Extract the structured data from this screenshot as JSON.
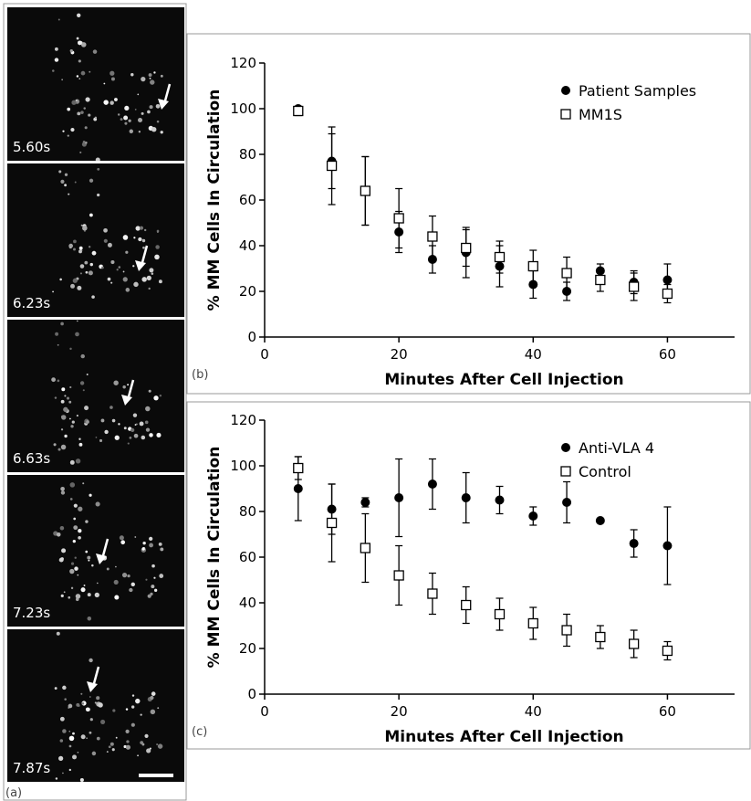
{
  "panel_a": {
    "label": "(a)",
    "frames": [
      {
        "time": "5.60s"
      },
      {
        "time": "6.23s"
      },
      {
        "time": "6.63s"
      },
      {
        "time": "7.23s"
      },
      {
        "time": "7.87s"
      }
    ]
  },
  "chart_data": [
    {
      "type": "scatter",
      "panel_label": "(b)",
      "x_label": "Minutes After Cell Injection",
      "y_label": "% MM Cells In Circulation",
      "x": [
        5,
        10,
        15,
        20,
        25,
        30,
        35,
        40,
        45,
        50,
        55,
        60
      ],
      "series": [
        {
          "name": "Patient Samples",
          "color": "#000000",
          "marker": "circle",
          "values": [
            100,
            77,
            64,
            46,
            34,
            37,
            31,
            23,
            20,
            29,
            24,
            25
          ],
          "errors": [
            1,
            12,
            15,
            9,
            6,
            11,
            9,
            6,
            4,
            3,
            5,
            7
          ]
        },
        {
          "name": "MM1S",
          "color": "#000000",
          "marker": "square",
          "values": [
            99,
            75,
            64,
            52,
            44,
            39,
            35,
            31,
            28,
            25,
            22,
            19
          ],
          "errors": [
            2,
            17,
            15,
            13,
            9,
            8,
            7,
            7,
            7,
            5,
            6,
            4
          ]
        }
      ],
      "xlim": [
        0,
        70
      ],
      "xticks": [
        0,
        20,
        40,
        60
      ],
      "ylim": [
        0,
        120
      ],
      "yticks": [
        0,
        20,
        40,
        60,
        80,
        100,
        120
      ],
      "legend": "upper right"
    },
    {
      "type": "scatter",
      "panel_label": "(c)",
      "x_label": "Minutes After Cell Injection",
      "y_label": "% MM Cells In Circulation",
      "x": [
        5,
        10,
        15,
        20,
        25,
        30,
        35,
        40,
        45,
        50,
        55,
        60
      ],
      "series": [
        {
          "name": "Anti-VLA 4",
          "color": "#000000",
          "marker": "circle",
          "values": [
            90,
            81,
            84,
            86,
            92,
            86,
            85,
            78,
            84,
            76,
            66,
            65
          ],
          "errors": [
            14,
            11,
            2,
            17,
            11,
            11,
            6,
            4,
            9,
            0,
            6,
            17
          ]
        },
        {
          "name": "Control",
          "color": "#000000",
          "marker": "square",
          "values": [
            99,
            75,
            64,
            52,
            44,
            39,
            35,
            31,
            28,
            25,
            22,
            19
          ],
          "errors": [
            5,
            17,
            15,
            13,
            9,
            8,
            7,
            7,
            7,
            5,
            6,
            4
          ]
        }
      ],
      "xlim": [
        0,
        70
      ],
      "xticks": [
        0,
        20,
        40,
        60
      ],
      "ylim": [
        0,
        120
      ],
      "yticks": [
        0,
        20,
        40,
        60,
        80,
        100,
        120
      ],
      "legend": "upper right"
    }
  ]
}
